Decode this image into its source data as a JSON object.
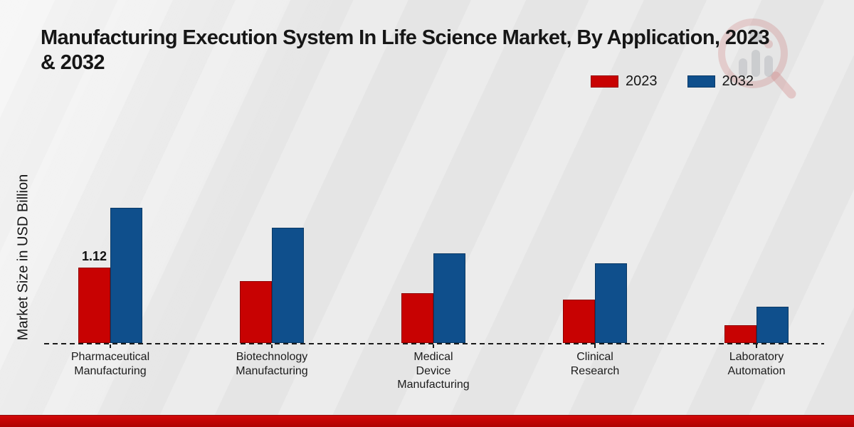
{
  "page": {
    "title_full": "Manufacturing Execution System In Life Science Market, By Application, 2023 & 2032",
    "title_line1": "Manufacturing Execution System In Life Science Market, By Application, 2023",
    "title_line2": "& 2032",
    "ylabel": "Market Size in USD Billion",
    "accent_red": "#c80202",
    "accent_blue": "#0f4f8c",
    "footer_color": "#c00404",
    "background_color": "#e9e9e9"
  },
  "legend": {
    "items": [
      {
        "label": "2023",
        "color": "#c80202"
      },
      {
        "label": "2032",
        "color": "#0f4f8c"
      }
    ]
  },
  "watermark": {
    "name": "magnifier-bar-chart-logo"
  },
  "chart_data": {
    "type": "bar",
    "title": "Manufacturing Execution System In Life Science Market, By Application, 2023 & 2032",
    "xlabel": "",
    "ylabel": "Market Size in USD Billion",
    "categories": [
      "Pharmaceutical\nManufacturing",
      "Biotechnology\nManufacturing",
      "Medical\nDevice\nManufacturing",
      "Clinical\nResearch",
      "Laboratory\nAutomation"
    ],
    "series": [
      {
        "name": "2023",
        "color": "#c80202",
        "values": [
          1.12,
          0.92,
          0.74,
          0.65,
          0.26
        ]
      },
      {
        "name": "2032",
        "color": "#0f4f8c",
        "values": [
          2.02,
          1.72,
          1.34,
          1.19,
          0.54
        ]
      }
    ],
    "annotations": [
      {
        "series_index": 0,
        "category_index": 0,
        "text": "1.12"
      }
    ],
    "ylim": [
      0,
      2.2
    ],
    "grid": false,
    "legend_position": "top-right",
    "baseline_style": "dashed"
  }
}
